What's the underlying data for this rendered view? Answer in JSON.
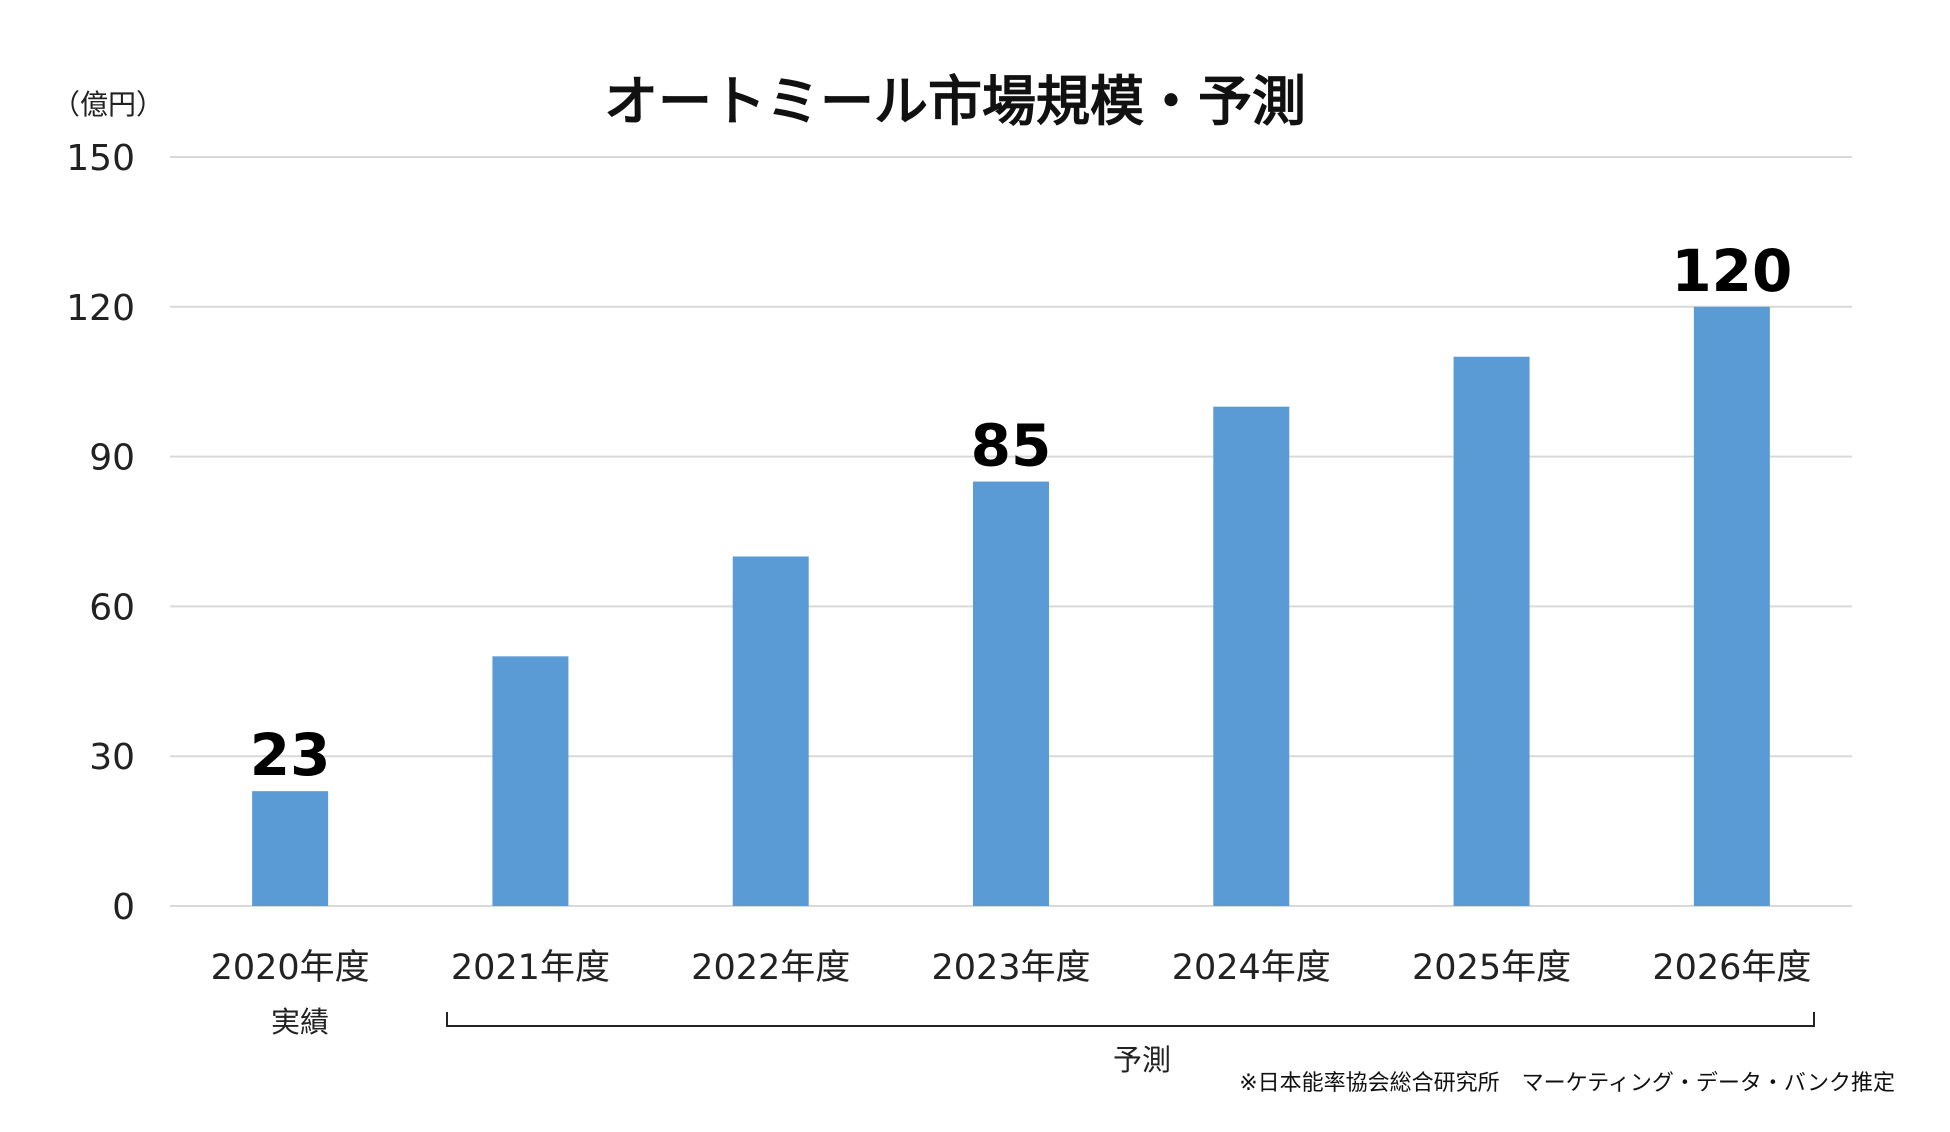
{
  "chart_data": {
    "type": "bar",
    "title": "オートミール市場規模・予測",
    "unit_label": "（億円）",
    "categories": [
      "2020年度",
      "2021年度",
      "2022年度",
      "2023年度",
      "2024年度",
      "2025年度",
      "2026年度"
    ],
    "values": [
      23,
      50,
      70,
      85,
      100,
      110,
      120
    ],
    "ylim": [
      0,
      150
    ],
    "yticks": [
      "0",
      "30",
      "60",
      "90",
      "120",
      "150"
    ],
    "data_labels": [
      {
        "index": 0,
        "text": "23"
      },
      {
        "index": 3,
        "text": "85"
      },
      {
        "index": 6,
        "text": "120"
      }
    ],
    "annotations": {
      "actual_label": "実績",
      "forecast_label": "予測"
    },
    "source": "※日本能率協会総合研究所　マーケティング・データ・バンク推定",
    "grid": true,
    "legend": "none",
    "colors": {
      "bar": "#5b9bd5",
      "grid": "#d9d9d9",
      "text": "#222222"
    }
  }
}
